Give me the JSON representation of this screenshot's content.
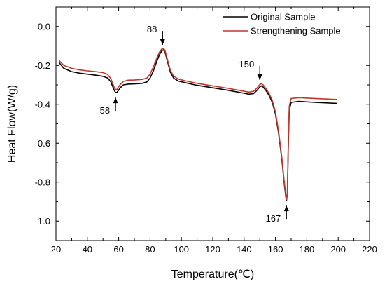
{
  "chart_data": {
    "type": "line",
    "xlabel": "Temperature(℃)",
    "ylabel": "Heat Flow(W/g)",
    "xlim": [
      20,
      220
    ],
    "ylim": [
      -1.1,
      0.1
    ],
    "x_ticks": [
      20,
      40,
      60,
      80,
      100,
      120,
      140,
      160,
      180,
      200,
      220
    ],
    "y_ticks": [
      0.0,
      -0.2,
      -0.4,
      -0.6,
      -0.8,
      -1.0
    ],
    "x_tick_labels": [
      "20",
      "40",
      "60",
      "80",
      "100",
      "120",
      "140",
      "160",
      "180",
      "200",
      "220"
    ],
    "y_tick_labels": [
      "0.0",
      "-0.2",
      "-0.4",
      "-0.6",
      "-0.8",
      "-1.0"
    ],
    "legend_position": "top-right",
    "series": [
      {
        "name": "Original Sample",
        "color": "#000000",
        "points": [
          [
            22,
            -0.185
          ],
          [
            25,
            -0.215
          ],
          [
            30,
            -0.232
          ],
          [
            35,
            -0.24
          ],
          [
            40,
            -0.245
          ],
          [
            45,
            -0.25
          ],
          [
            50,
            -0.256
          ],
          [
            53,
            -0.265
          ],
          [
            55,
            -0.285
          ],
          [
            57,
            -0.325
          ],
          [
            58,
            -0.34
          ],
          [
            59,
            -0.338
          ],
          [
            61,
            -0.315
          ],
          [
            63,
            -0.3
          ],
          [
            66,
            -0.296
          ],
          [
            70,
            -0.295
          ],
          [
            75,
            -0.292
          ],
          [
            78,
            -0.285
          ],
          [
            80,
            -0.265
          ],
          [
            82,
            -0.23
          ],
          [
            84,
            -0.185
          ],
          [
            86,
            -0.145
          ],
          [
            87.5,
            -0.125
          ],
          [
            88.5,
            -0.12
          ],
          [
            89.5,
            -0.13
          ],
          [
            91,
            -0.175
          ],
          [
            93,
            -0.235
          ],
          [
            95,
            -0.265
          ],
          [
            98,
            -0.28
          ],
          [
            103,
            -0.29
          ],
          [
            110,
            -0.302
          ],
          [
            120,
            -0.315
          ],
          [
            130,
            -0.328
          ],
          [
            138,
            -0.34
          ],
          [
            143,
            -0.348
          ],
          [
            146,
            -0.345
          ],
          [
            148,
            -0.33
          ],
          [
            150,
            -0.31
          ],
          [
            151,
            -0.305
          ],
          [
            152,
            -0.31
          ],
          [
            154,
            -0.33
          ],
          [
            156,
            -0.355
          ],
          [
            158,
            -0.39
          ],
          [
            160,
            -0.45
          ],
          [
            162,
            -0.55
          ],
          [
            164,
            -0.68
          ],
          [
            165.5,
            -0.8
          ],
          [
            166.5,
            -0.87
          ],
          [
            167,
            -0.895
          ],
          [
            167.6,
            -0.86
          ],
          [
            168.2,
            -0.6
          ],
          [
            168.8,
            -0.43
          ],
          [
            170,
            -0.39
          ],
          [
            175,
            -0.385
          ],
          [
            185,
            -0.39
          ],
          [
            199,
            -0.395
          ]
        ]
      },
      {
        "name": "Strengthening Sample",
        "color": "#c0392b",
        "points": [
          [
            22,
            -0.175
          ],
          [
            25,
            -0.2
          ],
          [
            30,
            -0.215
          ],
          [
            35,
            -0.223
          ],
          [
            40,
            -0.228
          ],
          [
            45,
            -0.232
          ],
          [
            50,
            -0.237
          ],
          [
            53,
            -0.247
          ],
          [
            55,
            -0.268
          ],
          [
            57,
            -0.31
          ],
          [
            58,
            -0.325
          ],
          [
            59,
            -0.322
          ],
          [
            61,
            -0.298
          ],
          [
            63,
            -0.282
          ],
          [
            66,
            -0.276
          ],
          [
            70,
            -0.275
          ],
          [
            75,
            -0.272
          ],
          [
            78,
            -0.265
          ],
          [
            80,
            -0.245
          ],
          [
            82,
            -0.21
          ],
          [
            84,
            -0.168
          ],
          [
            86,
            -0.132
          ],
          [
            87.5,
            -0.116
          ],
          [
            88.5,
            -0.112
          ],
          [
            89.5,
            -0.122
          ],
          [
            91,
            -0.166
          ],
          [
            93,
            -0.225
          ],
          [
            95,
            -0.255
          ],
          [
            98,
            -0.27
          ],
          [
            103,
            -0.28
          ],
          [
            110,
            -0.292
          ],
          [
            120,
            -0.305
          ],
          [
            130,
            -0.318
          ],
          [
            138,
            -0.33
          ],
          [
            143,
            -0.337
          ],
          [
            146,
            -0.333
          ],
          [
            148,
            -0.318
          ],
          [
            150,
            -0.298
          ],
          [
            151,
            -0.294
          ],
          [
            152,
            -0.299
          ],
          [
            154,
            -0.32
          ],
          [
            156,
            -0.345
          ],
          [
            158,
            -0.38
          ],
          [
            160,
            -0.44
          ],
          [
            162,
            -0.54
          ],
          [
            164,
            -0.67
          ],
          [
            165.5,
            -0.79
          ],
          [
            166.5,
            -0.86
          ],
          [
            167,
            -0.89
          ],
          [
            167.6,
            -0.85
          ],
          [
            168.2,
            -0.58
          ],
          [
            168.8,
            -0.41
          ],
          [
            170,
            -0.37
          ],
          [
            175,
            -0.366
          ],
          [
            185,
            -0.37
          ],
          [
            199,
            -0.375
          ]
        ]
      }
    ],
    "annotations": [
      {
        "text": "58",
        "x": 58,
        "y": -0.34,
        "direction": "up"
      },
      {
        "text": "88",
        "x": 88,
        "y": -0.12,
        "direction": "down"
      },
      {
        "text": "150",
        "x": 150,
        "y": -0.3,
        "direction": "down"
      },
      {
        "text": "167",
        "x": 167,
        "y": -0.895,
        "direction": "up"
      }
    ]
  }
}
